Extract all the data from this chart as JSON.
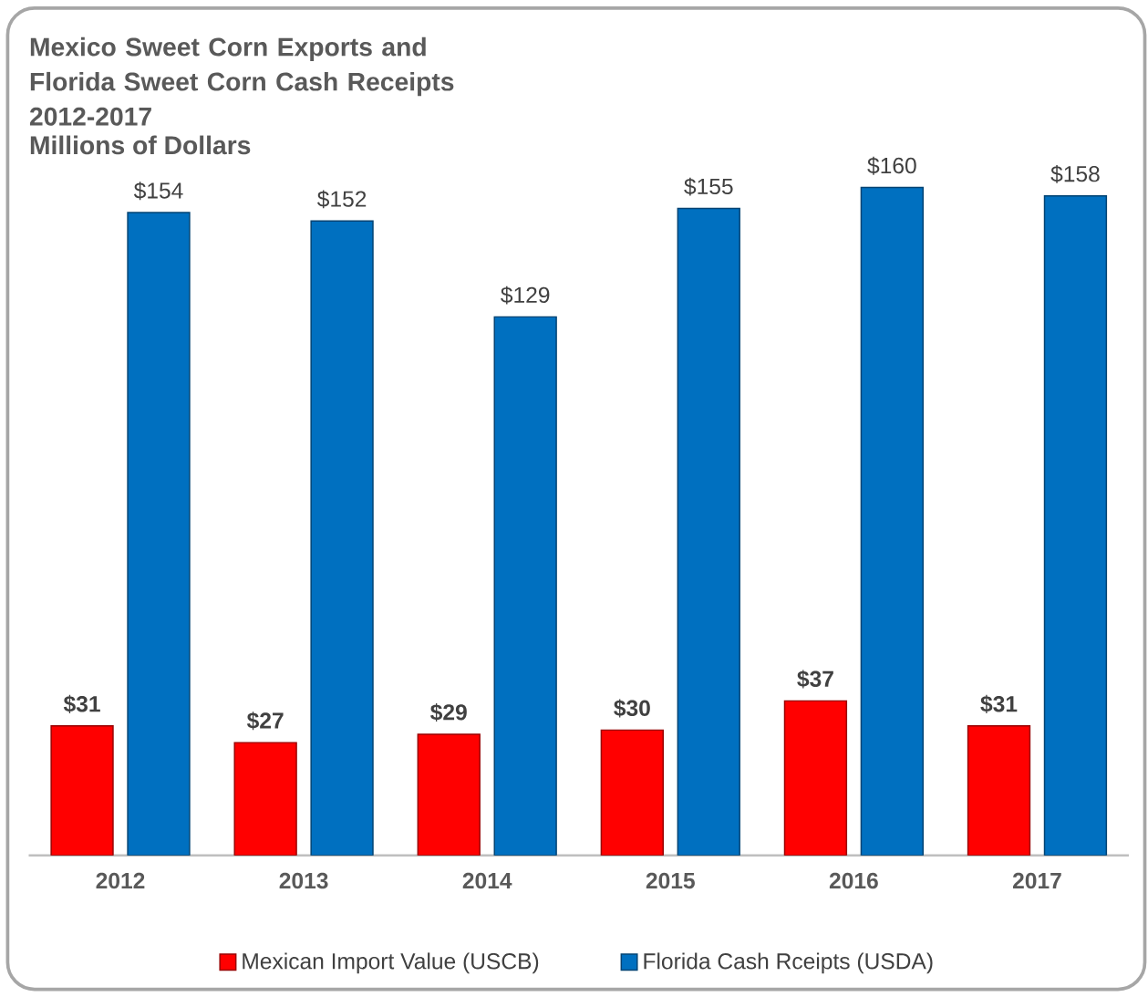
{
  "chart_data": {
    "type": "bar",
    "title": "Mexico Sweet Corn Exports and Florida Sweet Corn Cash Receipts 2012-2017",
    "subtitle": "Millions of Dollars",
    "categories": [
      "2012",
      "2013",
      "2014",
      "2015",
      "2016",
      "2017"
    ],
    "series": [
      {
        "name": "Mexican Import Value (USCB)",
        "color": "#ff0000",
        "values": [
          31,
          27,
          29,
          30,
          37,
          31
        ],
        "value_labels": [
          "$31",
          "$27",
          "$29",
          "$30",
          "$37",
          "$31"
        ]
      },
      {
        "name": "Florida Cash Rceipts (USDA)",
        "color": "#0070c0",
        "values": [
          154,
          152,
          129,
          155,
          160,
          158
        ],
        "value_labels": [
          "$154",
          "$152",
          "$129",
          "$155",
          "$160",
          "$158"
        ]
      }
    ],
    "legend": "bottom"
  }
}
